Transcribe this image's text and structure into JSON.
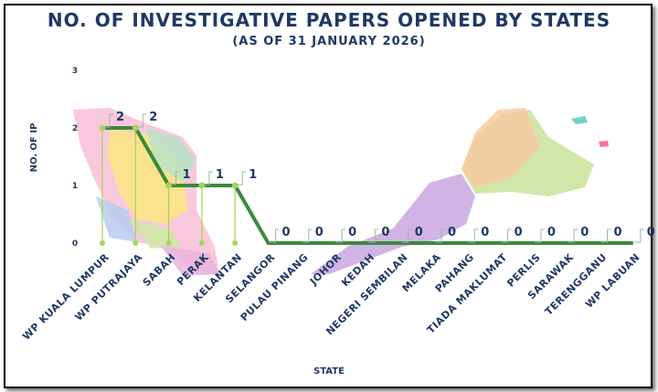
{
  "chart_data": {
    "type": "line",
    "title": "NO. OF INVESTIGATIVE PAPERS OPENED BY STATES",
    "subtitle": "(AS OF 31 JANUARY 2026)",
    "xlabel": "STATE",
    "ylabel": "NO. OF IP",
    "ylim": [
      0,
      3
    ],
    "yticks": [
      "0",
      "1",
      "2",
      "3"
    ],
    "grid": false,
    "legend": "none",
    "line_color": "#3a8a3a",
    "marker_color": "#a8d45a",
    "text_color": "#1f3864",
    "categories": [
      "WP KUALA LUMPUR",
      "WP PUTRAJAYA",
      "SABAH",
      "PERAK",
      "KELANTAN",
      "SELANGOR",
      "PULAU PINANG",
      "JOHOR",
      "KEDAH",
      "NEGERI SEMBILAN",
      "MELAKA",
      "PAHANG",
      "TIADA MAKLUMAT",
      "PERLIS",
      "SARAWAK",
      "TERENGGANU",
      "WP LABUAN"
    ],
    "values": [
      2,
      2,
      1,
      1,
      1,
      0,
      0,
      0,
      0,
      0,
      0,
      0,
      0,
      0,
      0,
      0,
      0
    ]
  }
}
